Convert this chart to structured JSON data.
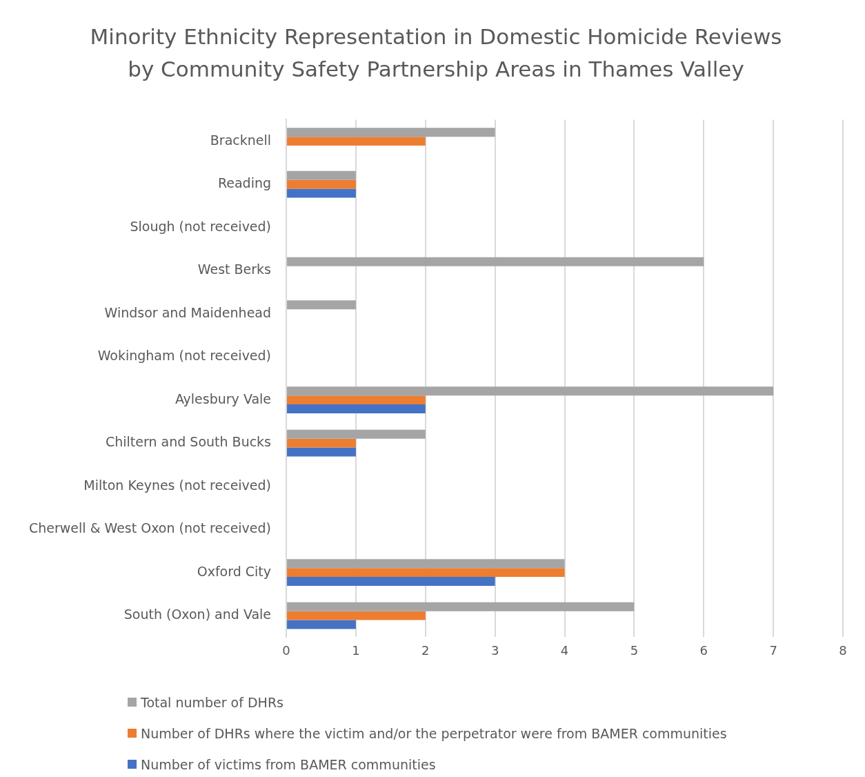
{
  "chart_data": {
    "type": "bar",
    "orientation": "horizontal",
    "title": "Minority Ethnicity Representation in Domestic Homicide Reviews by Community Safety Partnership Areas in Thames Valley",
    "categories": [
      "Bracknell",
      "Reading",
      "Slough (not received)",
      "West Berks",
      "Windsor and Maidenhead",
      "Wokingham (not received)",
      "Aylesbury Vale",
      "Chiltern and South Bucks",
      "Milton Keynes (not received)",
      "Cherwell & West Oxon (not received)",
      "Oxford City",
      "South (Oxon) and Vale"
    ],
    "series": [
      {
        "name": "Total number of DHRs",
        "color": "#a5a5a5",
        "values": [
          3,
          1,
          null,
          6,
          1,
          null,
          7,
          2,
          null,
          null,
          4,
          5
        ]
      },
      {
        "name": "Number of DHRs where the victim and/or the perpetrator were from BAMER communities",
        "color": "#ed7d31",
        "values": [
          2,
          1,
          null,
          0,
          0,
          null,
          2,
          1,
          null,
          null,
          4,
          2
        ]
      },
      {
        "name": "Number of victims from BAMER communities",
        "color": "#4472c4",
        "values": [
          0,
          1,
          null,
          0,
          0,
          null,
          2,
          1,
          null,
          null,
          3,
          1
        ]
      }
    ],
    "xlim": [
      0,
      8
    ],
    "xticks": [
      0,
      1,
      2,
      3,
      4,
      5,
      6,
      7,
      8
    ],
    "grid": "x",
    "legend": "bottom left"
  }
}
